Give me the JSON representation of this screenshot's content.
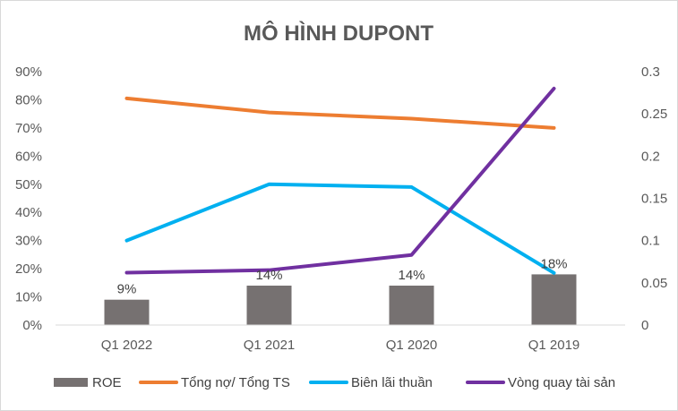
{
  "chart_data": {
    "type": "bar",
    "title": "MÔ HÌNH DUPONT",
    "categories": [
      "Q1 2022",
      "Q1 2021",
      "Q1 2020",
      "Q1 2019"
    ],
    "y_left": {
      "min": 0,
      "max": 0.9,
      "ticks": [
        0,
        0.1,
        0.2,
        0.3,
        0.4,
        0.5,
        0.6,
        0.7,
        0.8,
        0.9
      ],
      "tick_labels": [
        "0%",
        "10%",
        "20%",
        "30%",
        "40%",
        "50%",
        "60%",
        "70%",
        "80%",
        "90%"
      ]
    },
    "y_right": {
      "min": 0,
      "max": 0.3,
      "ticks": [
        0,
        0.05,
        0.1,
        0.15,
        0.2,
        0.25,
        0.3
      ],
      "tick_labels": [
        "0",
        "0.05",
        "0.1",
        "0.15",
        "0.2",
        "0.25",
        "0.3"
      ]
    },
    "grid": false,
    "legend_position": "bottom",
    "series": [
      {
        "name": "ROE",
        "type": "bar",
        "axis": "left",
        "color": "#767171",
        "values": [
          0.09,
          0.14,
          0.14,
          0.18
        ],
        "data_labels": [
          "9%",
          "14%",
          "14%",
          "18%"
        ]
      },
      {
        "name": "Tổng nợ/ Tổng TS",
        "type": "line",
        "axis": "left",
        "color": "#ED7D31",
        "values": [
          0.805,
          0.755,
          0.733,
          0.7
        ]
      },
      {
        "name": "Biên lãi thuần",
        "type": "line",
        "axis": "left",
        "color": "#00B0F0",
        "values": [
          0.3,
          0.5,
          0.49,
          0.185
        ]
      },
      {
        "name": "Vòng quay tài sản",
        "type": "line",
        "axis": "right",
        "color": "#7030A0",
        "values": [
          0.062,
          0.065,
          0.083,
          0.28
        ]
      }
    ]
  }
}
